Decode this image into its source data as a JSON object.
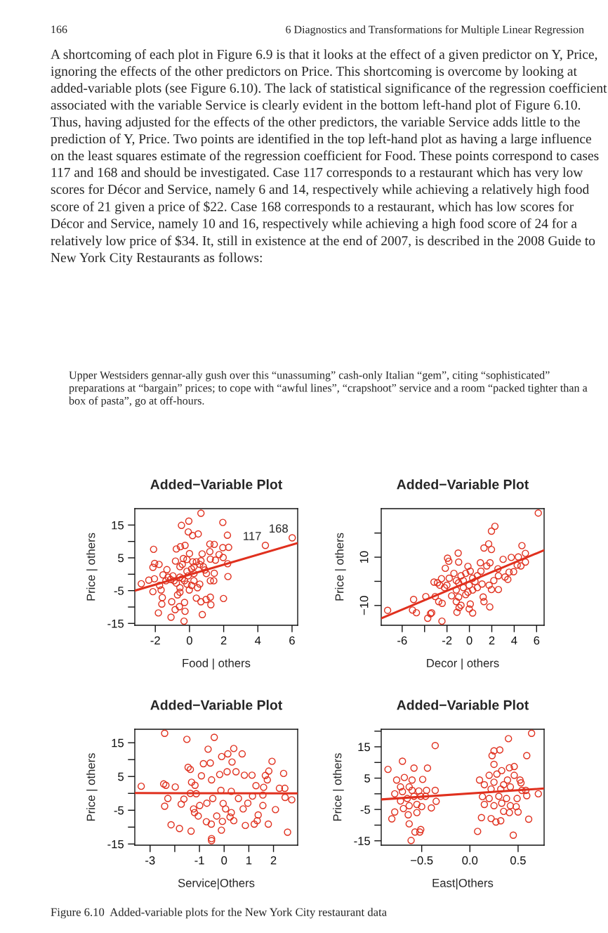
{
  "chart_data": [
    {
      "type": "scatter",
      "title": "Added−Variable Plot",
      "xlabel": "Food | others",
      "ylabel": "Price | others",
      "xlim": [
        -3.2,
        6.33
      ],
      "ylim": [
        -15.57,
        20.0
      ],
      "xticks": [
        -2,
        0,
        2,
        4,
        6
      ],
      "yticks": [
        -15,
        {
          "value": -10,
          "label": null
        },
        -5,
        {
          "value": 0,
          "label": null
        },
        5,
        {
          "value": 10,
          "label": null
        },
        15
      ],
      "series": [
        {
          "type": "scatter",
          "color": "#e0301e",
          "marker": "circle",
          "x": [
            0.67,
            -0.04,
            1.95,
            -0.47,
            -0.07,
            0.51,
            0.18,
            2.22,
            4.44,
            6.01,
            1.19,
            1.45,
            -0.26,
            -0.53,
            -0.77,
            -2.1,
            1.95,
            2.29,
            1.19,
            1.73,
            0,
            0.74,
            1.97,
            -0.36,
            1.22,
            1.52,
            -0.82,
            -2.04,
            -1.78,
            2.23,
            0.19,
            0.6,
            -2.14,
            -1.32,
            0.9,
            0.99,
            1.45,
            -1.55,
            -0.97,
            -0.56,
            -0.08,
            0.26,
            2.25,
            -2.05,
            -2.38,
            -2.82,
            1.22,
            1.42,
            -1.75,
            -0.77,
            0.12,
            0.47,
            0.6,
            -2.14,
            -1.66,
            -0.56,
            -0.01,
            -0.7,
            -1.59,
            0.4,
            1.22,
            0.97,
            1.99,
            -1.04,
            -0.29,
            0.67,
            -1.62,
            1.25,
            -0.59,
            -0.84,
            -1.82,
            -0.26,
            0.75,
            -1.08,
            -0.32,
            -1.25,
            -1.11,
            -0.9,
            -0.42,
            -0.29,
            -0.15,
            0.12,
            0.26,
            0.4,
            -0.42,
            -0.56,
            -0.15,
            0.67,
            0.81,
            -0.56,
            -0.15,
            0.26,
            -1.38
          ],
          "values": [
            18.6,
            16.2,
            15.8,
            14.9,
            12.9,
            12.3,
            11.8,
            11.9,
            8.8,
            11.1,
            9.2,
            9.1,
            8.8,
            8.4,
            7.7,
            7.6,
            8.1,
            8.2,
            6.9,
            6.0,
            6.3,
            6.2,
            5.1,
            4.8,
            4.6,
            4.3,
            4.0,
            3.3,
            3.0,
            3.2,
            3.8,
            3.0,
            2.1,
            1.4,
            1.3,
            0.2,
            0.3,
            -0.2,
            -0.5,
            -0.9,
            -0.5,
            0.2,
            -0.7,
            -1.4,
            -1.8,
            -2.9,
            -2.0,
            -2.0,
            -3.4,
            -2.7,
            -3.4,
            -4.1,
            -3.0,
            -5.3,
            -4.8,
            -5.5,
            -4.8,
            -6.3,
            -7.1,
            -7.3,
            -7.0,
            -7.7,
            -7.4,
            -8.4,
            -8.6,
            -8.4,
            -9.1,
            -9.3,
            -9.9,
            -10.8,
            -11.8,
            -11.3,
            -12.3,
            -13.1,
            -14.3,
            -0.9,
            -1.6,
            -2.0,
            -1.3,
            -2.0,
            0.9,
            1.6,
            2.3,
            3.8,
            3.0,
            2.3,
            4.5,
            4.1,
            2.3,
            -4.1,
            -3.0,
            -2.0,
            -2.0
          ]
        },
        {
          "type": "line",
          "color": "#e0301e",
          "line_style": "solid",
          "x": [
            -3.2,
            6.33
          ],
          "values": [
            -5.0,
            9.5
          ]
        }
      ],
      "annotations": [
        "166",
        "6 Diagnostics and Transformations for Multiple Linear Regression",
        "A shortcoming of each plot in Figure 6.9 is that it looks at the effect of a given predictor on Y, Price, ignoring the effects of the other predictors on Price. This shortcoming is overcome by looking at added-variable plots (see Figure 6.10). The lack of statistical significance of the regression coefficient associated with the variable Service is clearly evident in the bottom left-hand plot of Figure 6.10. Thus, having adjusted for the effects of the other predictors, the variable Service adds little to the prediction of Y, Price. Two points are identified in the top left-hand plot as having a large influence on the least squares estimate of the regression coefficient for Food. These points correspond to cases 117 and 168 and should be investigated. Case 117 corresponds to a restaurant which has very low scores for Décor and Service, namely 6 and 14, respectively while achieving a relatively high food score of 21 given a price of $22. Case 168 corresponds to a restaurant, which has low scores for Décor and Service, namely 10 and 16, respectively while achieving a high food score of 24 for a relatively low price of $34. It, still in existence at the end of 2007, is described in the 2008 Guide to New York City Restaurants as follows:",
        "Upper Westsiders gennar-ally gush over this “unassuming” cash-only Italian “gem”, citing “sophisticated” preparations at “bargain” prices; to cope with “awful lines”, “crapshoot” service and a room “packed tighter than a box of pasta”, go at off-hours.",
        {
          "text": "117",
          "x": 4.44,
          "y": 8.8
        },
        {
          "text": "168",
          "x": 6.01,
          "y": 11.1
        }
      ]
    },
    {
      "type": "scatter",
      "title": "Added−Variable Plot",
      "xlabel": "Decor | others",
      "ylabel": "Price | others",
      "xlim": [
        -7.87,
        6.67
      ],
      "ylim": [
        -18.2,
        30.1
      ],
      "xticks": [
        -6,
        {
          "value": -4,
          "label": null
        },
        -2,
        0,
        2,
        4,
        6
      ],
      "yticks": [
        {
          "value": -10,
          "label": "−10"
        },
        {
          "value": 0,
          "label": null
        },
        10,
        {
          "value": 20,
          "label": null
        }
      ],
      "series": [
        {
          "type": "scatter",
          "color": "#e0301e",
          "marker": "circle",
          "x": [
            6.15,
            2.28,
            1.97,
            1.72,
            1.3,
            1.97,
            4.69,
            -1.0,
            5.0,
            3.74,
            3.01,
            4.37,
            -1.95,
            -1.84,
            -0.96,
            0.98,
            1.84,
            5.0,
            4.27,
            4.6,
            -2.15,
            1.55,
            2.55,
            3.95,
            3.54,
            3.18,
            3.43,
            2.59,
            2.18,
            -1.8,
            -2.49,
            -3.16,
            -2.85,
            -2.64,
            -2.01,
            2.59,
            1.97,
            1.76,
            1.13,
            0.71,
            -2.22,
            -1.17,
            -0.33,
            -1.59,
            -0.96,
            -3.89,
            -3.05,
            1.23,
            1.3,
            -2.74,
            -2.43,
            -4.98,
            -1.17,
            -0.75,
            0.08,
            1.82,
            -0.02,
            -0.92,
            -7.3,
            -5.08,
            -4.73,
            -3.37,
            -3.47,
            -1.11,
            0.29,
            -3.72,
            -2.45,
            -0.75,
            -0.33,
            0.08,
            -0.13,
            -0.54,
            0.29,
            -1.17,
            0.5,
            -0.02,
            -0.54,
            0.29,
            0.71,
            1.03,
            -1.38,
            -0.96,
            -0.13
          ],
          "values": [
            28.3,
            22.8,
            20.8,
            15.5,
            13.8,
            13.2,
            14.8,
            11.7,
            11.6,
            9.9,
            9.1,
            10.1,
            9.6,
            8.3,
            8.0,
            7.7,
            7.7,
            8.0,
            6.7,
            6.4,
            5.4,
            6.4,
            5.2,
            4.0,
            3.8,
            1.8,
            0.8,
            2.3,
            0.3,
            1.3,
            1.1,
            -0.3,
            -0.6,
            -1.6,
            -1.6,
            -3.4,
            -3.4,
            -1.6,
            -1.1,
            -2.6,
            -2.6,
            -3.6,
            -5.5,
            -6.0,
            -6.5,
            -6.3,
            -6.3,
            -6.5,
            -8.4,
            -8.4,
            -9.1,
            -7.5,
            -8.4,
            -9.9,
            -9.4,
            -10.6,
            -11.4,
            -10.9,
            -12.0,
            -11.9,
            -13.0,
            -13.0,
            -13.4,
            -12.8,
            -13.1,
            -15.3,
            -16.5,
            2.3,
            3.3,
            4.2,
            6.2,
            0.3,
            1.3,
            0.3,
            -0.1,
            -1.6,
            -2.6,
            -3.6,
            2.3,
            4.2,
            3.3,
            -0.6,
            -4.5
          ]
        },
        {
          "type": "line",
          "color": "#e0301e",
          "line_style": "solid",
          "x": [
            -7.87,
            6.67
          ],
          "values": [
            -15.3,
            12.9
          ]
        }
      ]
    },
    {
      "type": "scatter",
      "title": "Added−Variable Plot",
      "xlabel": "Service|Others",
      "ylabel": "Price | others",
      "xlim": [
        -3.62,
        2.98
      ],
      "ylim": [
        -15.35,
        19.0
      ],
      "xticks": [
        -3,
        {
          "value": -2,
          "label": null
        },
        -1,
        0,
        1,
        2
      ],
      "yticks": [
        -15,
        {
          "value": -10,
          "label": null
        },
        -5,
        {
          "value": 0,
          "label": null
        },
        5,
        {
          "value": 10,
          "label": null
        },
        15
      ],
      "series": [
        {
          "type": "scatter",
          "color": "#e0301e",
          "marker": "circle",
          "x": [
            -2.41,
            -1.51,
            -0.4,
            -0.65,
            0.39,
            0.15,
            0.73,
            -0.1,
            0.32,
            1.94,
            -0.84,
            -0.56,
            -1.46,
            -1.37,
            1.81,
            2.41,
            1.67,
            -0.92,
            -0.18,
            0.12,
            0.48,
            0.82,
            1.13,
            1.75,
            -1.32,
            -0.51,
            -2.45,
            -2.36,
            -3.36,
            -1.98,
            -1.18,
            1.6,
            2.24,
            2.46,
            1.29,
            -0.13,
            0.29,
            -1.37,
            -1.13,
            1.15,
            1.57,
            -2.28,
            -1.63,
            2.47,
            2.74,
            -0.46,
            0.58,
            -2.41,
            -1.74,
            -0.99,
            -0.7,
            -0.04,
            0.96,
            1.57,
            -1.24,
            0.06,
            0.77,
            2.08,
            0.29,
            -1.2,
            -1.05,
            -0.3,
            0.24,
            1.38,
            1.34,
            -0.07,
            0.39,
            -0.72,
            -0.52,
            0.86,
            1.22,
            1.79,
            -2.15,
            -1.81,
            -1.34,
            -0.11,
            2.57,
            -0.51,
            -0.51
          ],
          "values": [
            17.8,
            16.0,
            16.6,
            13.1,
            13.3,
            11.7,
            11.7,
            10.9,
            9.3,
            9.5,
            8.8,
            9.0,
            7.7,
            7.1,
            6.6,
            5.9,
            5.3,
            5.2,
            5.6,
            6.4,
            6.4,
            5.4,
            5.4,
            4.0,
            3.3,
            4.0,
            2.8,
            2.4,
            2.1,
            1.9,
            2.4,
            1.8,
            1.5,
            1.5,
            2.3,
            0.9,
            0.6,
            0.0,
            -0.1,
            -0.8,
            -0.5,
            -1.5,
            -1.7,
            -1.2,
            -1.9,
            -1.5,
            -1.5,
            -3.8,
            -3.2,
            -3.6,
            -2.9,
            -3.0,
            -2.9,
            -3.6,
            -4.6,
            -4.6,
            -4.6,
            -4.8,
            -5.7,
            -5.7,
            -6.7,
            -6.7,
            -7.0,
            -6.4,
            -8.1,
            -8.3,
            -8.1,
            -8.4,
            -9.1,
            -9.5,
            -9.1,
            -9.1,
            -9.3,
            -10.4,
            -11.2,
            -10.9,
            -11.5,
            -13.4,
            -14.0
          ]
        },
        {
          "type": "line",
          "color": "#e0301e",
          "line_style": "solid",
          "x": [
            -3.62,
            2.98
          ],
          "values": [
            0.1,
            0.0
          ]
        }
      ]
    },
    {
      "type": "scatter",
      "title": "Added−Variable Plot",
      "xlabel": "East|Others",
      "ylabel": "Price | others",
      "xlim": [
        -0.92,
        0.77
      ],
      "ylim": [
        -16.4,
        20.6
      ],
      "xticks": [
        {
          "value": -0.5,
          "label": "−0.5"
        },
        {
          "value": 0,
          "label": "0.0"
        },
        0.5
      ],
      "yticks": [
        -15,
        {
          "value": -10,
          "label": null
        },
        -5,
        {
          "value": 0,
          "label": null
        },
        5,
        {
          "value": 10,
          "label": null
        },
        15,
        {
          "value": 20,
          "label": null
        }
      ],
      "series": [
        {
          "type": "scatter",
          "color": "#e0301e",
          "marker": "circle",
          "x": [
            -0.85,
            -0.7,
            -0.58,
            -0.44,
            -0.36,
            -0.76,
            -0.68,
            -0.6,
            -0.49,
            -0.72,
            -0.63,
            -0.78,
            -0.7,
            -0.6,
            -0.53,
            -0.45,
            -0.36,
            -0.72,
            -0.65,
            -0.58,
            -0.51,
            -0.46,
            -0.35,
            -0.69,
            -0.63,
            -0.55,
            -0.5,
            -0.4,
            -0.55,
            -0.64,
            -0.78,
            -0.81,
            -0.63,
            -0.57,
            -0.52,
            -0.51,
            -0.61,
            0.64,
            0.4,
            0.31,
            0.25,
            0.23,
            0.59,
            0.25,
            0.41,
            0.46,
            0.1,
            0.2,
            0.28,
            0.33,
            0.46,
            0.52,
            0.53,
            0.15,
            0.25,
            0.35,
            0.39,
            0.22,
            0.32,
            0.42,
            0.54,
            0.58,
            0.13,
            0.2,
            0.3,
            0.38,
            0.49,
            0.59,
            0.71,
            0.15,
            0.25,
            0.33,
            0.42,
            0.48,
            0.35,
            0.41,
            0.5,
            0.61,
            0.12,
            0.22,
            0.27,
            0.32,
            0.08,
            0.45
          ],
          "values": [
            7.8,
            10.4,
            8.2,
            8.2,
            15.4,
            4.4,
            5.2,
            4.4,
            4.6,
            2.2,
            2.2,
            0.0,
            0.7,
            1.1,
            0.9,
            1.1,
            1.1,
            -2.3,
            -1.5,
            -0.8,
            -0.8,
            -0.8,
            -2.4,
            -4.7,
            -3.8,
            -3.4,
            -4.1,
            -4.5,
            -6.0,
            -6.7,
            -5.8,
            -8.0,
            -9.6,
            -12.2,
            -12.2,
            -11.4,
            -14.9,
            19.3,
            17.6,
            14.0,
            13.7,
            12.2,
            12.2,
            9.4,
            8.3,
            8.7,
            4.4,
            5.9,
            6.3,
            7.4,
            5.9,
            4.4,
            3.5,
            2.9,
            3.7,
            2.9,
            4.4,
            1.5,
            1.5,
            2.2,
            1.1,
            1.1,
            -0.9,
            -1.5,
            -0.8,
            -1.5,
            -1.5,
            -0.6,
            0.0,
            -3.4,
            -3.8,
            -3.0,
            -3.8,
            -4.1,
            -5.6,
            -6.0,
            -5.8,
            -8.1,
            -7.6,
            -7.9,
            -9.0,
            -8.6,
            -12.0,
            -13.2
          ]
        },
        {
          "type": "line",
          "color": "#e0301e",
          "line_style": "solid",
          "x": [
            -0.92,
            0.77
          ],
          "values": [
            -1.8,
            1.7
          ]
        }
      ],
      "annotations": [
        "Figure 6.10  Added-variable plots for the New York City restaurant data"
      ]
    }
  ]
}
